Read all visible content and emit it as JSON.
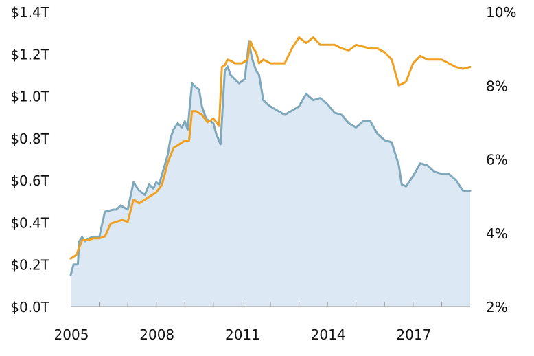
{
  "chart_data": {
    "type": "area",
    "title": "",
    "xlabel": "",
    "ylabel_left": "",
    "ylabel_right": "",
    "xlim": [
      2005,
      2019
    ],
    "x_ticks": [
      2005,
      2008,
      2011,
      2014,
      2017
    ],
    "x_tick_labels": [
      "2005",
      "2008",
      "2011",
      "2014",
      "2017"
    ],
    "left_axis": {
      "unit": "trillions USD",
      "ylim": [
        0.0,
        1.4
      ],
      "ticks": [
        0.0,
        0.2,
        0.4,
        0.6,
        0.8,
        1.0,
        1.2,
        1.4
      ],
      "tick_labels": [
        "$0.0T",
        "$0.2T",
        "$0.4T",
        "$0.6T",
        "$0.8T",
        "$1.0T",
        "$1.2T",
        "$1.4T"
      ]
    },
    "right_axis": {
      "unit": "percent",
      "ylim": [
        2,
        10
      ],
      "ticks": [
        2,
        4,
        6,
        8,
        10
      ],
      "tick_labels": [
        "2%",
        "4%",
        "6%",
        "8%",
        "10%"
      ]
    },
    "grid": false,
    "legend": "none",
    "series": [
      {
        "axis": "left",
        "style": "area",
        "color": "#7fa8ba",
        "fill": "#dce8f4",
        "x": [
          2005.0,
          2005.1,
          2005.25,
          2005.3,
          2005.4,
          2005.5,
          2005.6,
          2005.75,
          2006.0,
          2006.2,
          2006.5,
          2006.6,
          2006.75,
          2007.0,
          2007.2,
          2007.4,
          2007.6,
          2007.75,
          2007.9,
          2008.0,
          2008.1,
          2008.25,
          2008.4,
          2008.5,
          2008.6,
          2008.75,
          2008.9,
          2009.0,
          2009.1,
          2009.25,
          2009.4,
          2009.5,
          2009.6,
          2009.75,
          2009.9,
          2010.0,
          2010.1,
          2010.25,
          2010.4,
          2010.5,
          2010.6,
          2010.75,
          2010.9,
          2011.0,
          2011.1,
          2011.25,
          2011.35,
          2011.5,
          2011.6,
          2011.75,
          2011.9,
          2012.0,
          2012.25,
          2012.5,
          2012.75,
          2013.0,
          2013.25,
          2013.5,
          2013.75,
          2014.0,
          2014.25,
          2014.5,
          2014.75,
          2015.0,
          2015.25,
          2015.5,
          2015.75,
          2016.0,
          2016.25,
          2016.5,
          2016.6,
          2016.75,
          2017.0,
          2017.25,
          2017.5,
          2017.75,
          2018.0,
          2018.25,
          2018.5,
          2018.75,
          2019.0
        ],
        "values": [
          0.15,
          0.2,
          0.2,
          0.31,
          0.33,
          0.31,
          0.32,
          0.33,
          0.33,
          0.45,
          0.46,
          0.46,
          0.48,
          0.46,
          0.59,
          0.55,
          0.53,
          0.58,
          0.56,
          0.59,
          0.58,
          0.65,
          0.72,
          0.8,
          0.84,
          0.87,
          0.85,
          0.88,
          0.84,
          1.06,
          1.04,
          1.03,
          0.95,
          0.89,
          0.88,
          0.87,
          0.82,
          0.77,
          1.12,
          1.14,
          1.1,
          1.08,
          1.06,
          1.07,
          1.08,
          1.26,
          1.18,
          1.12,
          1.1,
          0.98,
          0.96,
          0.95,
          0.93,
          0.91,
          0.93,
          0.95,
          1.01,
          0.98,
          0.99,
          0.96,
          0.92,
          0.91,
          0.87,
          0.85,
          0.88,
          0.88,
          0.82,
          0.79,
          0.78,
          0.67,
          0.58,
          0.57,
          0.62,
          0.68,
          0.67,
          0.64,
          0.63,
          0.63,
          0.6,
          0.55,
          0.55
        ]
      },
      {
        "axis": "right",
        "style": "line",
        "color": "#f0a020",
        "x": [
          2005.0,
          2005.2,
          2005.4,
          2005.6,
          2005.8,
          2006.0,
          2006.2,
          2006.4,
          2006.6,
          2006.8,
          2007.0,
          2007.2,
          2007.4,
          2007.6,
          2007.8,
          2008.0,
          2008.2,
          2008.4,
          2008.6,
          2008.8,
          2009.0,
          2009.15,
          2009.25,
          2009.4,
          2009.6,
          2009.8,
          2010.0,
          2010.2,
          2010.3,
          2010.4,
          2010.5,
          2010.65,
          2010.75,
          2011.0,
          2011.2,
          2011.3,
          2011.4,
          2011.5,
          2011.6,
          2011.75,
          2012.0,
          2012.25,
          2012.5,
          2012.75,
          2013.0,
          2013.25,
          2013.5,
          2013.75,
          2014.0,
          2014.25,
          2014.5,
          2014.75,
          2015.0,
          2015.25,
          2015.5,
          2015.75,
          2016.0,
          2016.25,
          2016.5,
          2016.75,
          2017.0,
          2017.25,
          2017.5,
          2017.75,
          2018.0,
          2018.25,
          2018.5,
          2018.75,
          2019.0
        ],
        "values": [
          3.3,
          3.4,
          3.8,
          3.8,
          3.85,
          3.85,
          3.9,
          4.25,
          4.3,
          4.35,
          4.3,
          4.9,
          4.8,
          4.9,
          5.0,
          5.1,
          5.3,
          5.9,
          6.3,
          6.4,
          6.5,
          6.5,
          7.3,
          7.3,
          7.2,
          7.0,
          7.1,
          6.9,
          8.5,
          8.55,
          8.7,
          8.65,
          8.6,
          8.6,
          8.7,
          9.2,
          9.0,
          8.9,
          8.6,
          8.7,
          8.6,
          8.6,
          8.6,
          9.0,
          9.3,
          9.15,
          9.3,
          9.1,
          9.1,
          9.1,
          9.0,
          8.95,
          9.1,
          9.05,
          9.0,
          9.0,
          8.9,
          8.7,
          8.0,
          8.1,
          8.6,
          8.8,
          8.7,
          8.7,
          8.7,
          8.6,
          8.5,
          8.45,
          8.5
        ]
      }
    ]
  }
}
